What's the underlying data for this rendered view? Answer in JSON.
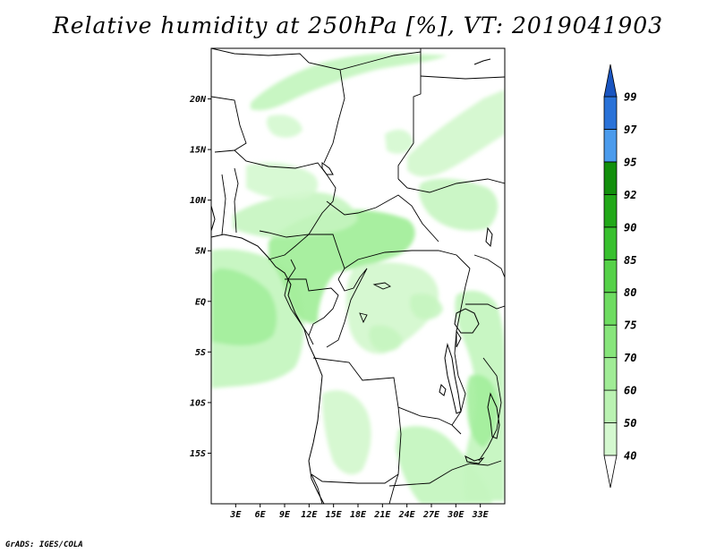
{
  "title": "Relative humidity at 250hPa [%], VT: 2019041903",
  "credit": "GrADS: IGES/COLA",
  "map": {
    "lon_range": [
      0,
      36
    ],
    "lat_range": [
      -20,
      25
    ],
    "lat_ticks": [
      {
        "value": 20,
        "label": "20N"
      },
      {
        "value": 15,
        "label": "15N"
      },
      {
        "value": 10,
        "label": "10N"
      },
      {
        "value": 5,
        "label": "5N"
      },
      {
        "value": 0,
        "label": "EQ"
      },
      {
        "value": -5,
        "label": "5S"
      },
      {
        "value": -10,
        "label": "10S"
      },
      {
        "value": -15,
        "label": "15S"
      }
    ],
    "lon_ticks": [
      {
        "value": 3,
        "label": "3E"
      },
      {
        "value": 6,
        "label": "6E"
      },
      {
        "value": 9,
        "label": "9E"
      },
      {
        "value": 12,
        "label": "12E"
      },
      {
        "value": 15,
        "label": "15E"
      },
      {
        "value": 18,
        "label": "18E"
      },
      {
        "value": 21,
        "label": "21E"
      },
      {
        "value": 24,
        "label": "24E"
      },
      {
        "value": 27,
        "label": "27E"
      },
      {
        "value": 30,
        "label": "30E"
      },
      {
        "value": 33,
        "label": "33E"
      }
    ],
    "colors": {
      "lt40": "#ffffff",
      "c40_50": "#e8fce6",
      "c50_60": "#c5f5c0",
      "c60_70": "#a3ee9b"
    }
  },
  "colorbar": {
    "levels": [
      40,
      50,
      60,
      70,
      75,
      80,
      85,
      90,
      92,
      95,
      97,
      99
    ],
    "labels": [
      "40",
      "50",
      "60",
      "70",
      "75",
      "80",
      "85",
      "90",
      "92",
      "95",
      "97",
      "99"
    ],
    "colors": [
      "#ecfcea",
      "#d4f8cf",
      "#baf2b2",
      "#a0ec96",
      "#87e57b",
      "#6edc61",
      "#55d148",
      "#38c02e",
      "#21a818",
      "#128f0c",
      "#4b9bec",
      "#2a72d8",
      "#1a55c0"
    ]
  }
}
